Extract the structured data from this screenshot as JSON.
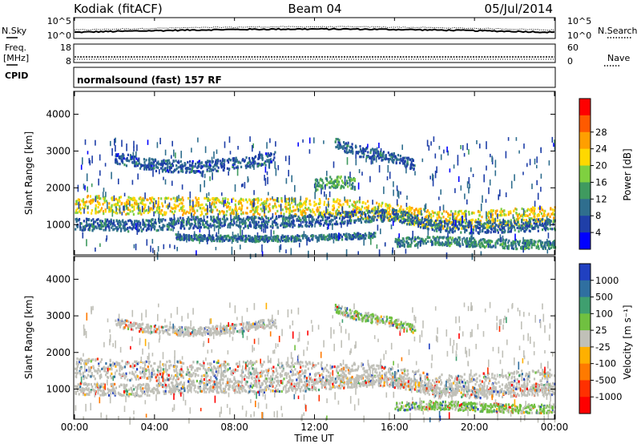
{
  "header": {
    "station": "Kodiak (fitACF)",
    "beam": "Beam 04",
    "date": "05/Jul/2014"
  },
  "side_labels": {
    "nsky": "N.Sky",
    "freq_line1": "Freq.",
    "freq_line2": "[MHz]",
    "cpid": "CPID",
    "nsearch": "N.Search",
    "nave": "Nave"
  },
  "strip_ticks": {
    "nsky_top": "10^5",
    "nsky_bottom": "10^0",
    "nsearch_top": "10^5",
    "nsearch_bottom": "10^0",
    "freq_top": "18",
    "freq_bottom": "8",
    "nave_top": "60",
    "nave_bottom": "0"
  },
  "cpid_text": "normalsound (fast) 157 RF",
  "chart_data": [
    {
      "type": "heatmap",
      "panel": "power",
      "ylabel": "Slant Range [km]",
      "xlabel": "",
      "x_range_hours": [
        0,
        24
      ],
      "ylim": [
        200,
        4600
      ],
      "yticks": [
        1000,
        2000,
        3000,
        4000
      ],
      "colorbar": {
        "label": "Power [dB]",
        "ticks": [
          4,
          8,
          12,
          16,
          20,
          24,
          28
        ],
        "colors": [
          "#0000ff",
          "#1f3fa8",
          "#2f6e8e",
          "#3f9a5f",
          "#7fd040",
          "#ffd800",
          "#ff9f00",
          "#ff5a00",
          "#ff0000"
        ]
      },
      "features": [
        {
          "kind": "band",
          "t": [
            0,
            3,
            6,
            9,
            12,
            14,
            16,
            18,
            20,
            22,
            24
          ],
          "r": [
            1550,
            1500,
            1480,
            1480,
            1450,
            1430,
            1300,
            1120,
            1120,
            1200,
            1250
          ],
          "width_km": 300,
          "level": 22
        },
        {
          "kind": "band",
          "t": [
            0,
            3,
            6,
            9,
            12,
            14,
            16,
            18,
            20,
            22,
            24
          ],
          "r": [
            1000,
            950,
            1050,
            1050,
            1100,
            1200,
            1250,
            950,
            900,
            950,
            1000
          ],
          "width_km": 200,
          "level": 9
        },
        {
          "kind": "band",
          "t": [
            5,
            7,
            9,
            11,
            13,
            15
          ],
          "r": [
            650,
            620,
            600,
            620,
            650,
            700
          ],
          "width_km": 100,
          "level": 10
        },
        {
          "kind": "band",
          "t": [
            2,
            4,
            6,
            8,
            10
          ],
          "r": [
            2800,
            2600,
            2550,
            2650,
            2800
          ],
          "width_km": 200,
          "level": 8
        },
        {
          "kind": "band",
          "t": [
            13,
            14,
            15,
            16,
            17
          ],
          "r": [
            3200,
            3000,
            2900,
            2800,
            2600
          ],
          "width_km": 180,
          "level": 9
        },
        {
          "kind": "band",
          "t": [
            12,
            13,
            14
          ],
          "r": [
            2050,
            2150,
            2100
          ],
          "width_km": 200,
          "level": 15
        },
        {
          "kind": "band",
          "t": [
            16,
            18,
            20,
            22,
            24
          ],
          "r": [
            500,
            550,
            500,
            450,
            450
          ],
          "width_km": 150,
          "level": 12
        }
      ]
    },
    {
      "type": "heatmap",
      "panel": "velocity",
      "ylabel": "Slant Range [km]",
      "xlabel": "Time UT",
      "x_range_hours": [
        0,
        24
      ],
      "xticks": [
        "00:00",
        "04:00",
        "08:00",
        "12:00",
        "16:00",
        "20:00",
        "00:00"
      ],
      "ylim": [
        200,
        4600
      ],
      "yticks": [
        1000,
        2000,
        3000,
        4000
      ],
      "colorbar": {
        "label": "Velocity [m s⁻¹]",
        "ticks": [
          1000,
          500,
          100,
          25,
          -25,
          -100,
          -500,
          -1000
        ],
        "colors": [
          "#2040c0",
          "#2f6fa0",
          "#3f9f6f",
          "#70c040",
          "#c0c0b8",
          "#ffb000",
          "#ff7a00",
          "#ff3000",
          "#ff0000"
        ]
      },
      "features": [
        {
          "kind": "band",
          "t": [
            0,
            3,
            6,
            9,
            12,
            14,
            16,
            18,
            20,
            22,
            24
          ],
          "r": [
            1550,
            1500,
            1480,
            1480,
            1450,
            1430,
            1300,
            1120,
            1120,
            1200,
            1250
          ],
          "width_km": 350,
          "level": 25
        },
        {
          "kind": "band",
          "t": [
            0,
            3,
            6,
            9,
            12,
            14,
            16,
            18,
            20,
            22,
            24
          ],
          "r": [
            1000,
            950,
            1050,
            1050,
            1100,
            1200,
            1250,
            950,
            900,
            950,
            1000
          ],
          "width_km": 200,
          "level": 25
        },
        {
          "kind": "band",
          "t": [
            2,
            4,
            6,
            8,
            10
          ],
          "r": [
            2800,
            2600,
            2550,
            2650,
            2800
          ],
          "width_km": 150,
          "level": 25
        },
        {
          "kind": "band",
          "t": [
            13,
            14,
            15,
            16,
            17
          ],
          "r": [
            3200,
            3000,
            2900,
            2800,
            2600
          ],
          "width_km": 150,
          "level": 100
        },
        {
          "kind": "band",
          "t": [
            16,
            18,
            20,
            22,
            24
          ],
          "r": [
            500,
            550,
            500,
            450,
            450
          ],
          "width_km": 150,
          "level": 100
        }
      ]
    }
  ]
}
